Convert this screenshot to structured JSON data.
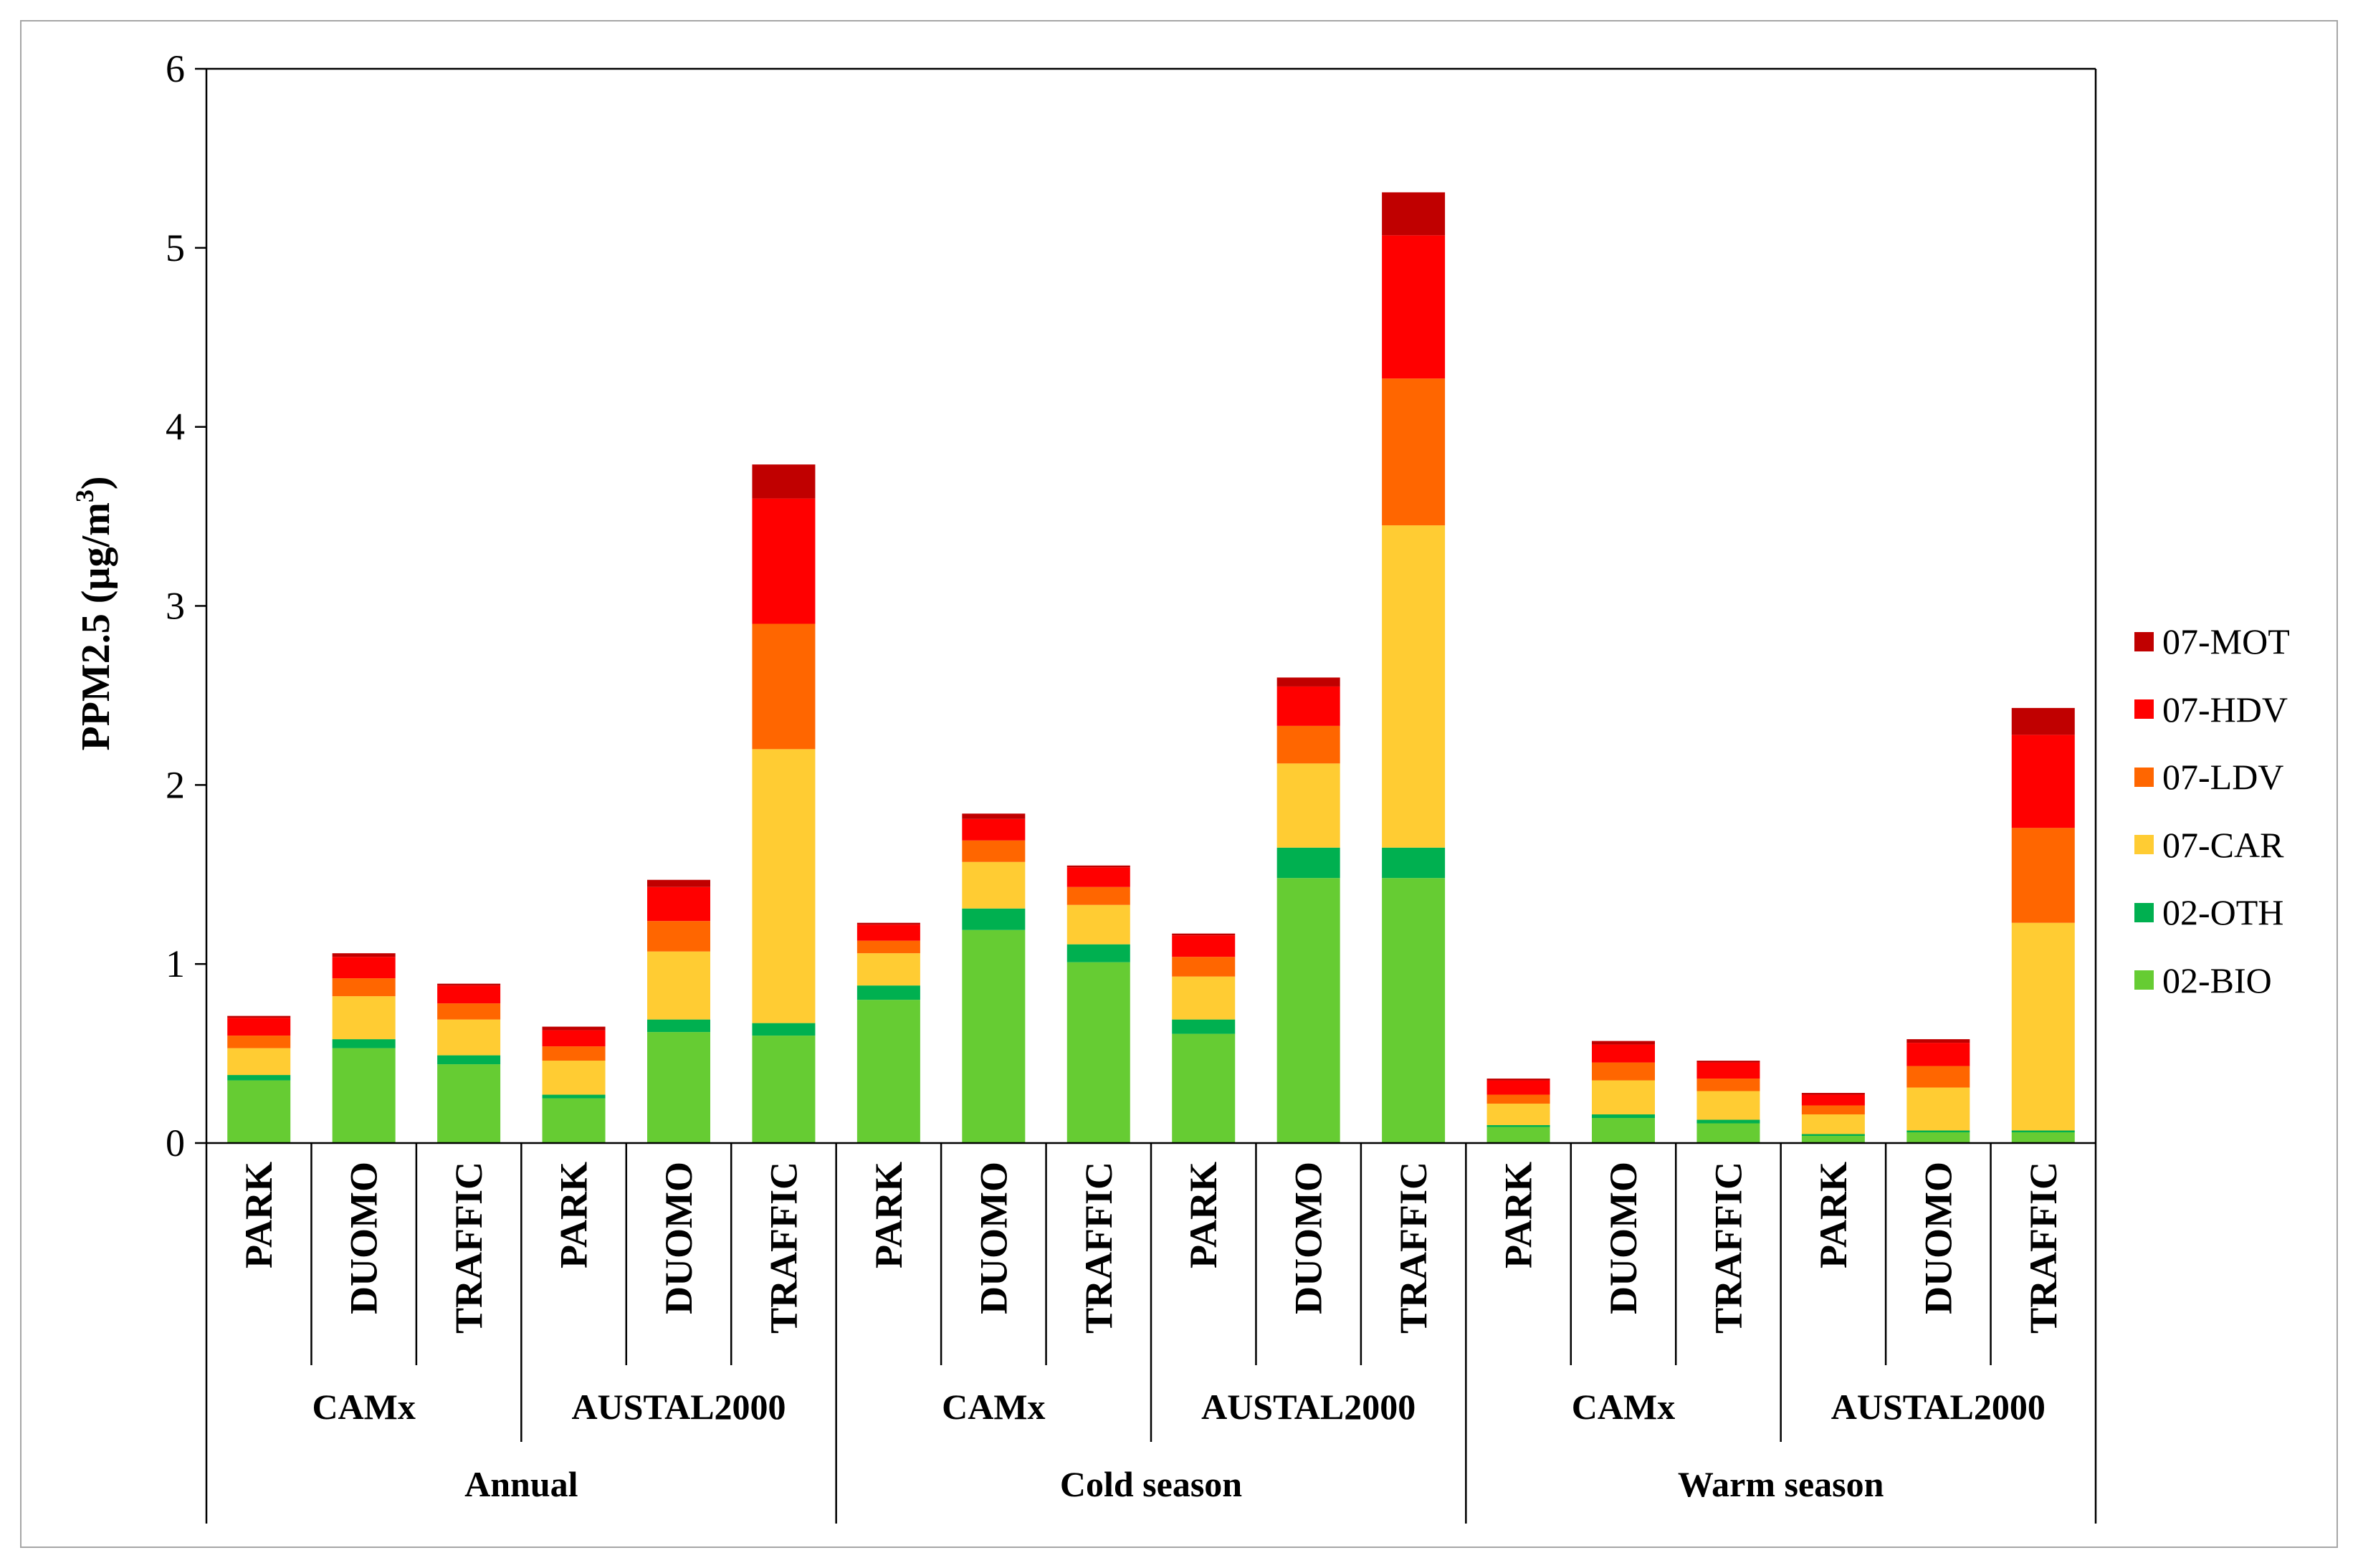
{
  "chart_data": {
    "type": "bar",
    "stacked": true,
    "title": "",
    "xlabel": "",
    "ylabel": "PPM2.5 (µg/m³)",
    "ylabel_parts": {
      "main": "PPM2.5 (µg/m",
      "sup": "3",
      "close": ")"
    },
    "ylim": [
      0,
      6
    ],
    "yticks": [
      0,
      1,
      2,
      3,
      4,
      5,
      6
    ],
    "grid": false,
    "legend_position": "right",
    "categories": [
      "PARK",
      "DUOMO",
      "TRAFFIC",
      "PARK",
      "DUOMO",
      "TRAFFIC",
      "PARK",
      "DUOMO",
      "TRAFFIC",
      "PARK",
      "DUOMO",
      "TRAFFIC",
      "PARK",
      "DUOMO",
      "TRAFFIC",
      "PARK",
      "DUOMO",
      "TRAFFIC"
    ],
    "model_groups": [
      "CAMx",
      "AUSTAL2000",
      "CAMx",
      "AUSTAL2000",
      "CAMx",
      "AUSTAL2000"
    ],
    "period_groups": [
      "Annual",
      "Cold season",
      "Warm season"
    ],
    "series": [
      {
        "name": "02-BIO",
        "color": "#66cc33",
        "values": [
          0.35,
          0.53,
          0.44,
          0.25,
          0.62,
          0.6,
          0.8,
          1.19,
          1.01,
          0.61,
          1.48,
          1.48,
          0.09,
          0.14,
          0.11,
          0.04,
          0.06,
          0.06
        ]
      },
      {
        "name": "02-OTH",
        "color": "#00b050",
        "values": [
          0.03,
          0.05,
          0.05,
          0.02,
          0.07,
          0.07,
          0.08,
          0.12,
          0.1,
          0.08,
          0.17,
          0.17,
          0.01,
          0.02,
          0.02,
          0.01,
          0.01,
          0.01
        ]
      },
      {
        "name": "07-CAR",
        "color": "#ffcc33",
        "values": [
          0.15,
          0.24,
          0.2,
          0.19,
          0.38,
          1.53,
          0.18,
          0.26,
          0.22,
          0.24,
          0.47,
          1.8,
          0.12,
          0.19,
          0.16,
          0.11,
          0.24,
          1.16
        ]
      },
      {
        "name": "07-LDV",
        "color": "#ff6600",
        "values": [
          0.07,
          0.1,
          0.09,
          0.08,
          0.17,
          0.7,
          0.07,
          0.12,
          0.1,
          0.11,
          0.21,
          0.82,
          0.05,
          0.1,
          0.07,
          0.05,
          0.12,
          0.53
        ]
      },
      {
        "name": "07-HDV",
        "color": "#ff0000",
        "values": [
          0.1,
          0.12,
          0.1,
          0.09,
          0.19,
          0.7,
          0.09,
          0.12,
          0.11,
          0.12,
          0.22,
          0.8,
          0.08,
          0.1,
          0.09,
          0.06,
          0.13,
          0.52
        ]
      },
      {
        "name": "07-MOT",
        "color": "#c00000",
        "values": [
          0.01,
          0.02,
          0.01,
          0.02,
          0.04,
          0.19,
          0.01,
          0.03,
          0.01,
          0.01,
          0.05,
          0.24,
          0.01,
          0.02,
          0.01,
          0.01,
          0.02,
          0.15
        ]
      }
    ]
  }
}
